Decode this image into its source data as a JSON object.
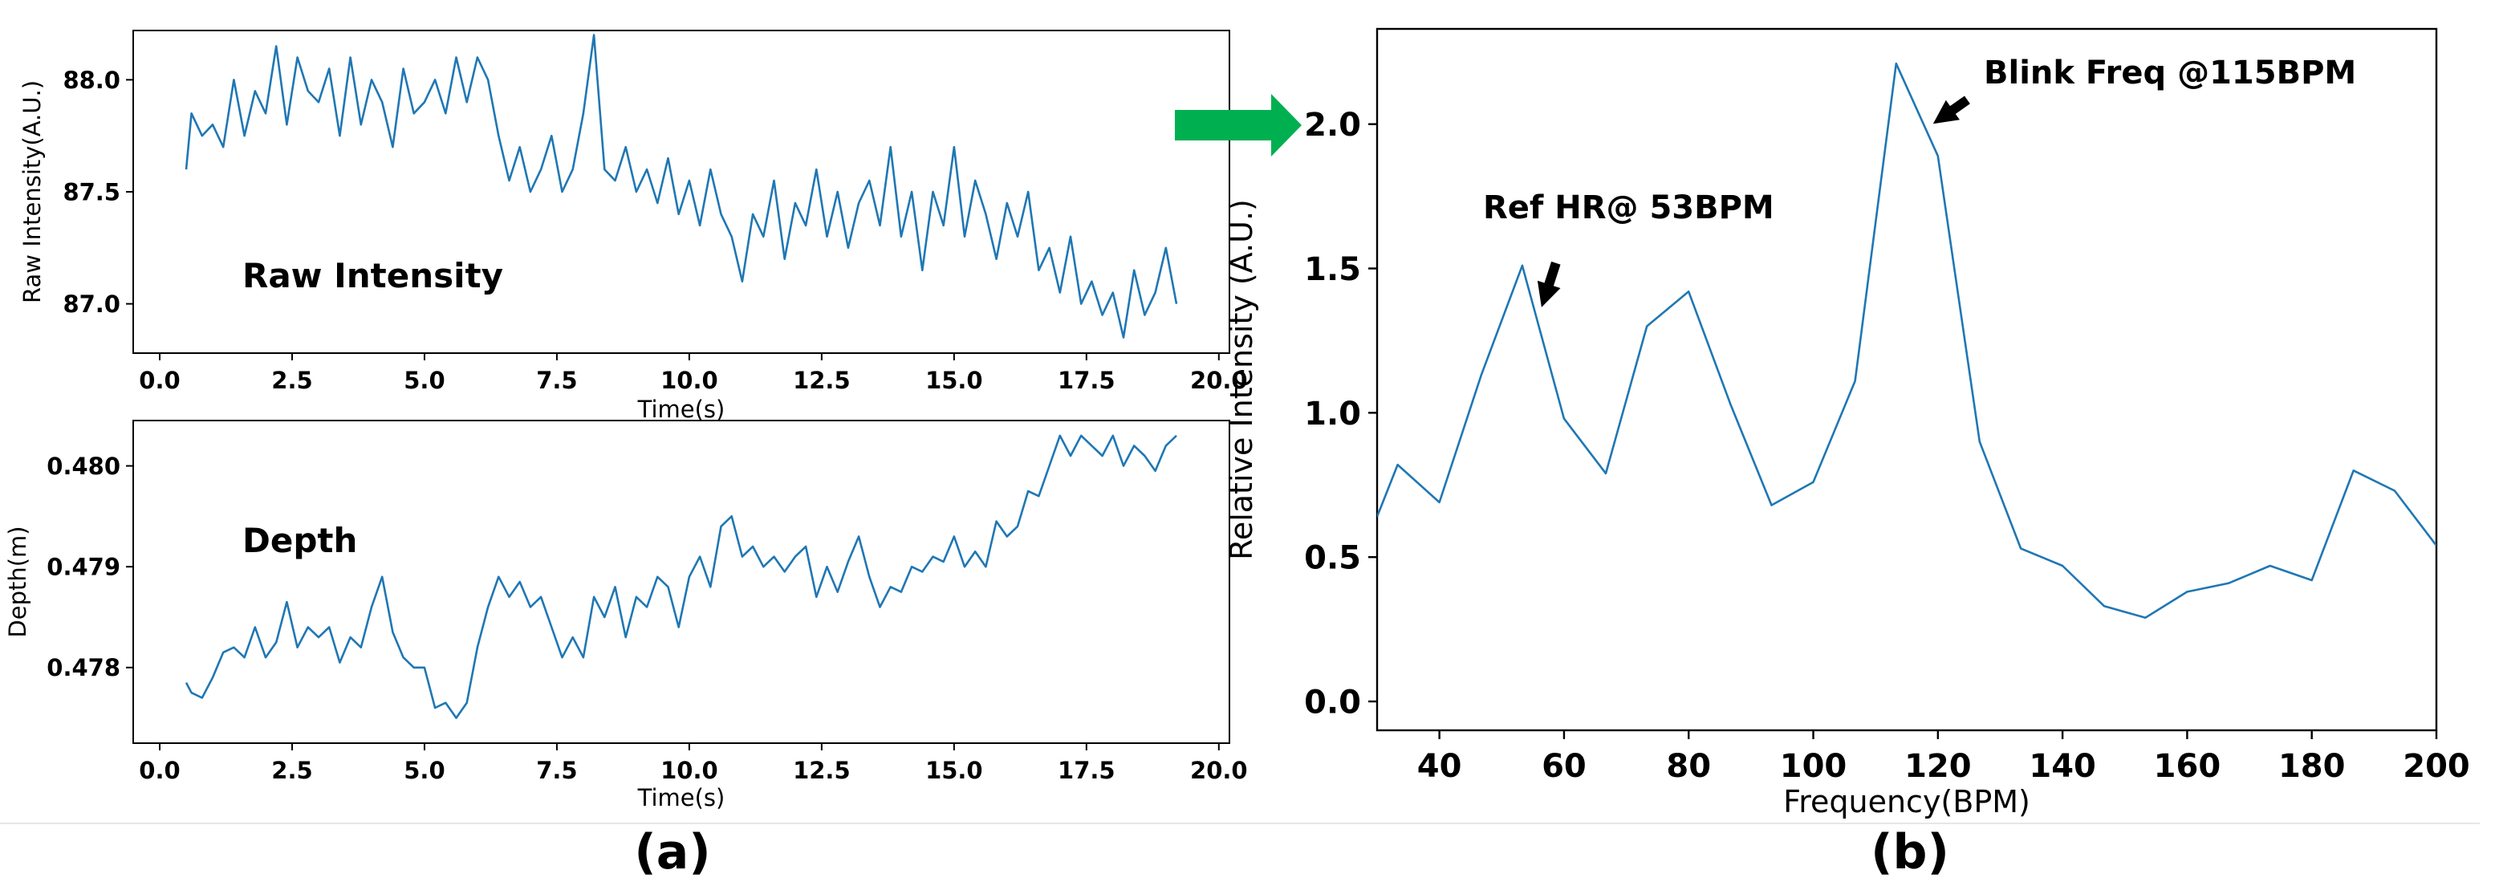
{
  "colors": {
    "line": "#1f77b4",
    "arrow": "#00b050",
    "axis": "#000000",
    "separator": "#e6e6e6"
  },
  "panel_labels": {
    "a": "(a)",
    "b": "(b)"
  },
  "chart_data": [
    {
      "id": "raw_intensity",
      "type": "line",
      "xlabel": "Time(s)",
      "ylabel": "Raw Intensity(A.U.)",
      "inplot_label": "Raw Intensity",
      "xlim": [
        -0.5,
        20.2
      ],
      "ylim": [
        86.78,
        88.22
      ],
      "xticks": [
        0.0,
        2.5,
        5.0,
        7.5,
        10.0,
        12.5,
        15.0,
        17.5,
        20.0
      ],
      "xtick_labels": [
        "0.0",
        "2.5",
        "5.0",
        "7.5",
        "10.0",
        "12.5",
        "15.0",
        "17.5",
        "20.0"
      ],
      "yticks": [
        87.0,
        87.5,
        88.0
      ],
      "ytick_labels": [
        "87.0",
        "87.5",
        "88.0"
      ],
      "grid": false,
      "x": [
        0.5,
        0.6,
        0.8,
        1.0,
        1.2,
        1.4,
        1.6,
        1.8,
        2.0,
        2.2,
        2.4,
        2.6,
        2.8,
        3.0,
        3.2,
        3.4,
        3.6,
        3.8,
        4.0,
        4.2,
        4.4,
        4.6,
        4.8,
        5.0,
        5.2,
        5.4,
        5.6,
        5.8,
        6.0,
        6.2,
        6.4,
        6.6,
        6.8,
        7.0,
        7.2,
        7.4,
        7.6,
        7.8,
        8.0,
        8.2,
        8.4,
        8.6,
        8.8,
        9.0,
        9.2,
        9.4,
        9.6,
        9.8,
        10.0,
        10.2,
        10.4,
        10.6,
        10.8,
        11.0,
        11.2,
        11.4,
        11.6,
        11.8,
        12.0,
        12.2,
        12.4,
        12.6,
        12.8,
        13.0,
        13.2,
        13.4,
        13.6,
        13.8,
        14.0,
        14.2,
        14.4,
        14.6,
        14.8,
        15.0,
        15.2,
        15.4,
        15.6,
        15.8,
        16.0,
        16.2,
        16.4,
        16.6,
        16.8,
        17.0,
        17.2,
        17.4,
        17.6,
        17.8,
        18.0,
        18.2,
        18.4,
        18.6,
        18.8,
        19.0,
        19.2
      ],
      "y": [
        87.6,
        87.85,
        87.75,
        87.8,
        87.7,
        88.0,
        87.75,
        87.95,
        87.85,
        88.15,
        87.8,
        88.1,
        87.95,
        87.9,
        88.05,
        87.75,
        88.1,
        87.8,
        88.0,
        87.9,
        87.7,
        88.05,
        87.85,
        87.9,
        88.0,
        87.85,
        88.1,
        87.9,
        88.1,
        88.0,
        87.75,
        87.55,
        87.7,
        87.5,
        87.6,
        87.75,
        87.5,
        87.6,
        87.85,
        88.2,
        87.6,
        87.55,
        87.7,
        87.5,
        87.6,
        87.45,
        87.65,
        87.4,
        87.55,
        87.35,
        87.6,
        87.4,
        87.3,
        87.1,
        87.4,
        87.3,
        87.55,
        87.2,
        87.45,
        87.35,
        87.6,
        87.3,
        87.5,
        87.25,
        87.45,
        87.55,
        87.35,
        87.7,
        87.3,
        87.5,
        87.15,
        87.5,
        87.35,
        87.7,
        87.3,
        87.55,
        87.4,
        87.2,
        87.45,
        87.3,
        87.5,
        87.15,
        87.25,
        87.05,
        87.3,
        87.0,
        87.1,
        86.95,
        87.05,
        86.85,
        87.15,
        86.95,
        87.05,
        87.25,
        87.0
      ]
    },
    {
      "id": "depth",
      "type": "line",
      "xlabel": "Time(s)",
      "ylabel": "Depth(m)",
      "inplot_label": "Depth",
      "xlim": [
        -0.5,
        20.2
      ],
      "ylim": [
        0.47725,
        0.48045
      ],
      "xticks": [
        0.0,
        2.5,
        5.0,
        7.5,
        10.0,
        12.5,
        15.0,
        17.5,
        20.0
      ],
      "xtick_labels": [
        "0.0",
        "2.5",
        "5.0",
        "7.5",
        "10.0",
        "12.5",
        "15.0",
        "17.5",
        "20.0"
      ],
      "yticks": [
        0.478,
        0.479,
        0.48
      ],
      "ytick_labels": [
        "0.478",
        "0.479",
        "0.480"
      ],
      "grid": false,
      "x": [
        0.5,
        0.6,
        0.8,
        1.0,
        1.2,
        1.4,
        1.6,
        1.8,
        2.0,
        2.2,
        2.4,
        2.6,
        2.8,
        3.0,
        3.2,
        3.4,
        3.6,
        3.8,
        4.0,
        4.2,
        4.4,
        4.6,
        4.8,
        5.0,
        5.2,
        5.4,
        5.6,
        5.8,
        6.0,
        6.2,
        6.4,
        6.6,
        6.8,
        7.0,
        7.2,
        7.4,
        7.6,
        7.8,
        8.0,
        8.2,
        8.4,
        8.6,
        8.8,
        9.0,
        9.2,
        9.4,
        9.6,
        9.8,
        10.0,
        10.2,
        10.4,
        10.6,
        10.8,
        11.0,
        11.2,
        11.4,
        11.6,
        11.8,
        12.0,
        12.2,
        12.4,
        12.6,
        12.8,
        13.0,
        13.2,
        13.4,
        13.6,
        13.8,
        14.0,
        14.2,
        14.4,
        14.6,
        14.8,
        15.0,
        15.2,
        15.4,
        15.6,
        15.8,
        16.0,
        16.2,
        16.4,
        16.6,
        16.8,
        17.0,
        17.2,
        17.4,
        17.6,
        17.8,
        18.0,
        18.2,
        18.4,
        18.6,
        18.8,
        19.0,
        19.2
      ],
      "y": [
        0.47785,
        0.47775,
        0.4777,
        0.4779,
        0.47815,
        0.4782,
        0.4781,
        0.4784,
        0.4781,
        0.47825,
        0.47865,
        0.4782,
        0.4784,
        0.4783,
        0.4784,
        0.47805,
        0.4783,
        0.4782,
        0.4786,
        0.4789,
        0.47835,
        0.4781,
        0.478,
        0.478,
        0.4776,
        0.47765,
        0.4775,
        0.47765,
        0.4782,
        0.4786,
        0.4789,
        0.4787,
        0.47885,
        0.4786,
        0.4787,
        0.4784,
        0.4781,
        0.4783,
        0.4781,
        0.4787,
        0.4785,
        0.4788,
        0.4783,
        0.4787,
        0.4786,
        0.4789,
        0.4788,
        0.4784,
        0.4789,
        0.4791,
        0.4788,
        0.4794,
        0.4795,
        0.4791,
        0.4792,
        0.479,
        0.4791,
        0.47895,
        0.4791,
        0.4792,
        0.4787,
        0.479,
        0.47875,
        0.47905,
        0.4793,
        0.4789,
        0.4786,
        0.4788,
        0.47875,
        0.479,
        0.47895,
        0.4791,
        0.47905,
        0.4793,
        0.479,
        0.47915,
        0.479,
        0.47945,
        0.4793,
        0.4794,
        0.47975,
        0.4797,
        0.48,
        0.4803,
        0.4801,
        0.4803,
        0.4802,
        0.4801,
        0.4803,
        0.48,
        0.4802,
        0.4801,
        0.47995,
        0.4802,
        0.4803
      ]
    },
    {
      "id": "spectrum",
      "type": "line",
      "xlabel": "Frequency(BPM)",
      "ylabel": "Relative Intensity (A.U.)",
      "xlim": [
        30,
        200
      ],
      "ylim": [
        -0.1,
        2.33
      ],
      "xticks": [
        40,
        60,
        80,
        100,
        120,
        140,
        160,
        180,
        200
      ],
      "xtick_labels": [
        "40",
        "60",
        "80",
        "100",
        "120",
        "140",
        "160",
        "180",
        "200"
      ],
      "yticks": [
        0.0,
        0.5,
        1.0,
        1.5,
        2.0
      ],
      "ytick_labels": [
        "0.0",
        "0.5",
        "1.0",
        "1.5",
        "2.0"
      ],
      "grid": false,
      "x": [
        30,
        33.3,
        40,
        46.7,
        53.3,
        60,
        66.7,
        73.3,
        80,
        86.7,
        93.3,
        100,
        106.7,
        113.3,
        120,
        126.7,
        133.3,
        140,
        146.7,
        153.3,
        160,
        166.7,
        173.3,
        180,
        186.7,
        193.3,
        200
      ],
      "y": [
        0.64,
        0.82,
        0.69,
        1.13,
        1.51,
        0.98,
        0.79,
        1.3,
        1.42,
        1.03,
        0.68,
        0.76,
        1.11,
        2.21,
        1.89,
        0.9,
        0.53,
        0.47,
        0.33,
        0.29,
        0.38,
        0.41,
        0.47,
        0.42,
        0.8,
        0.73,
        0.54
      ],
      "annotations": [
        {
          "text": "Ref HR@ 53BPM",
          "x": 53.3,
          "y": 1.51
        },
        {
          "text": "Blink Freq @115BPM",
          "x": 120,
          "y": 1.89
        }
      ]
    }
  ]
}
